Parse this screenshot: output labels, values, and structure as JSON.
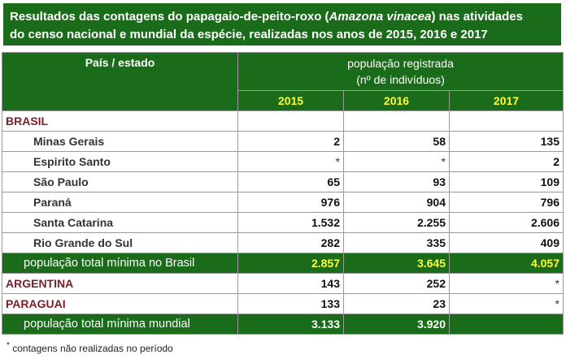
{
  "title": {
    "prefix": "Resultados das contagens do papagaio-de-peito-roxo (",
    "species": "Amazona vinacea",
    "suffix": ") nas atividades",
    "line2": "do censo nacional e mundial da espécie, realizadas nos anos de 2015, 2016 e 2017"
  },
  "header": {
    "label": "País / estado",
    "pop_line1": "população registrada",
    "pop_line2": "(nº de indivíduos)",
    "years": [
      "2015",
      "2016",
      "2017"
    ]
  },
  "rows": {
    "brasil": {
      "label": "BRASIL"
    },
    "minas": {
      "label": "Minas Gerais",
      "v": [
        "2",
        "58",
        "135"
      ]
    },
    "espirito": {
      "label": "Espirito Santo",
      "v": [
        "*",
        "*",
        "2"
      ]
    },
    "saopaulo": {
      "label": "São Paulo",
      "v": [
        "65",
        "93",
        "109"
      ]
    },
    "parana": {
      "label": "Paraná",
      "v": [
        "976",
        "904",
        "796"
      ]
    },
    "santacat": {
      "label": "Santa Catarina",
      "v": [
        "1.532",
        "2.255",
        "2.606"
      ]
    },
    "riogrande": {
      "label": "Rio Grande do Sul",
      "v": [
        "282",
        "335",
        "409"
      ]
    },
    "total_brasil": {
      "label": "população total mínima no Brasil",
      "v": [
        "2.857",
        "3.645",
        "4.057"
      ]
    },
    "argentina": {
      "label": "ARGENTINA",
      "v": [
        "143",
        "252",
        "*"
      ]
    },
    "paraguai": {
      "label": "PARAGUAI",
      "v": [
        "133",
        "23",
        "*"
      ]
    },
    "total_mundial": {
      "label": "população total mínima mundial",
      "v": [
        "3.133",
        "3.920",
        ""
      ]
    }
  },
  "footnote": {
    "mark": "*",
    "text": " contagens não realizadas no período"
  }
}
